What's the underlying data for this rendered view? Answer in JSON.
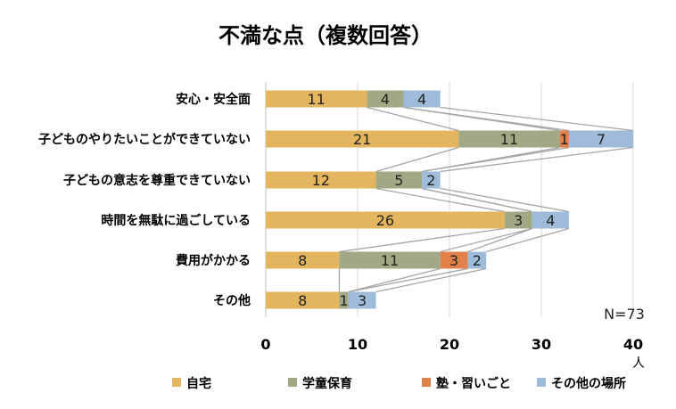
{
  "chart_data": {
    "type": "bar",
    "orientation": "horizontal",
    "stacked": true,
    "title": "不満な点（複数回答）",
    "categories": [
      "安心・安全面",
      "子どものやりたいことができていない",
      "子どもの意志を尊重できていない",
      "時間を無駄に過ごしている",
      "費用がかかる",
      "その他"
    ],
    "series": [
      {
        "name": "自宅",
        "color": "#E2B55E",
        "values": [
          11,
          21,
          12,
          26,
          8,
          8
        ]
      },
      {
        "name": "学童保育",
        "color": "#A2A883",
        "values": [
          4,
          11,
          5,
          3,
          11,
          1
        ]
      },
      {
        "name": "塾・習いごと",
        "color": "#E0814A",
        "values": [
          0,
          1,
          0,
          0,
          3,
          0
        ]
      },
      {
        "name": "その他の場所",
        "color": "#9EBCDA",
        "values": [
          4,
          7,
          2,
          4,
          2,
          3
        ]
      }
    ],
    "xlim": [
      0,
      40
    ],
    "xticks": [
      0,
      10,
      20,
      30,
      40
    ],
    "xunit": "人",
    "note": "N=73",
    "grid": true,
    "legend": "bottom",
    "series_lines": true
  }
}
